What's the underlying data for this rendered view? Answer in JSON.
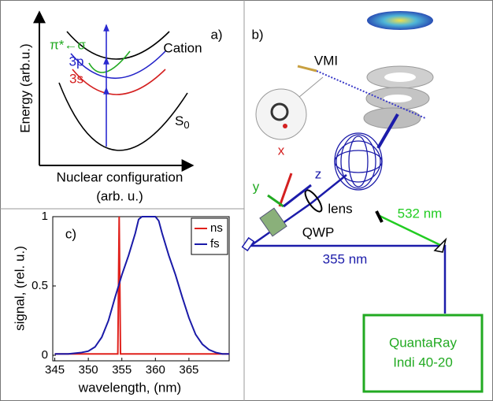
{
  "panel_a": {
    "label": "a)",
    "y_axis_label": "Energy (arb.u.)",
    "x_axis_label": "Nuclear configuration",
    "x_axis_unit": "(arb. u.)",
    "states": {
      "cation": "Cation",
      "p3": "3p",
      "s3": "3s",
      "transition": "π*←σ",
      "ground": "S",
      "ground_index": "0"
    }
  },
  "panel_b": {
    "label": "b)",
    "detector": "VMI",
    "axis_x": "x",
    "axis_y": "y",
    "axis_z": "z",
    "lens": "lens",
    "waveplate": "QWP",
    "green_beam": "532 nm",
    "uv_beam": "355 nm",
    "laser": [
      "QuantaRay",
      "Indi 40-20"
    ]
  },
  "chart_data": {
    "type": "line",
    "label": "c)",
    "xlabel": "wavelength, (nm)",
    "ylabel": "signal, (rel. u.)",
    "xlim": [
      344.7,
      371
    ],
    "ylim": [
      -0.04,
      1
    ],
    "xticks": [
      345,
      350,
      355,
      360,
      365
    ],
    "yticks": [
      0,
      0.5,
      1
    ],
    "legend": "upper right",
    "series": [
      {
        "name": "ns",
        "color": "#e0201b",
        "x": [
          345,
          354.4,
          354.5,
          354.6,
          354.7,
          354.8,
          371
        ],
        "values": [
          0.01,
          0.01,
          0.5,
          1,
          0.5,
          0.01,
          0.01
        ]
      },
      {
        "name": "fs",
        "color": "#1a1aa8",
        "x": [
          345,
          347,
          349,
          350,
          351,
          352,
          353,
          354,
          355,
          356,
          357,
          357.5,
          358,
          359,
          360,
          360.5,
          361,
          362,
          363,
          364,
          365,
          366,
          367,
          368,
          369,
          370,
          371
        ],
        "values": [
          0.01,
          0.01,
          0.02,
          0.03,
          0.06,
          0.13,
          0.25,
          0.42,
          0.58,
          0.72,
          0.88,
          0.98,
          1,
          1,
          1,
          0.97,
          0.88,
          0.72,
          0.58,
          0.42,
          0.27,
          0.15,
          0.08,
          0.04,
          0.02,
          0.01,
          0.01
        ]
      }
    ]
  }
}
